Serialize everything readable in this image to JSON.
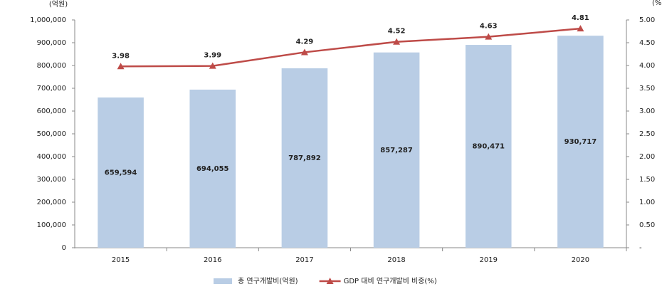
{
  "chart_data": {
    "type": "combo",
    "y_label": "(억원)",
    "y2_label": "(%)",
    "categories": [
      "2015",
      "2016",
      "2017",
      "2018",
      "2019",
      "2020"
    ],
    "series": [
      {
        "name": "총 연구개발비(억원)",
        "type": "bar",
        "color": "#b9cde5",
        "values": [
          659594,
          694055,
          787892,
          857287,
          890471,
          930717
        ],
        "value_labels": [
          "659,594",
          "694,055",
          "787,892",
          "857,287",
          "890,471",
          "930,717"
        ]
      },
      {
        "name": "GDP 대비 연구개발비 비중(%)",
        "type": "line",
        "axis": "y2",
        "color": "#be4b48",
        "values": [
          3.98,
          3.99,
          4.29,
          4.52,
          4.63,
          4.81
        ]
      }
    ],
    "ylim": [
      0,
      1000000
    ],
    "yticks": [
      {
        "value": 0,
        "label": "0"
      },
      {
        "value": 100000,
        "label": "100,000"
      },
      {
        "value": 200000,
        "label": "200,000"
      },
      {
        "value": 300000,
        "label": "300,000"
      },
      {
        "value": 400000,
        "label": "400,000"
      },
      {
        "value": 500000,
        "label": "500,000"
      },
      {
        "value": 600000,
        "label": "600,000"
      },
      {
        "value": 700000,
        "label": "700,000"
      },
      {
        "value": 800000,
        "label": "800,000"
      },
      {
        "value": 900000,
        "label": "900,000"
      },
      {
        "value": 1000000,
        "label": "1,000,000"
      }
    ],
    "y2lim": [
      0,
      5
    ],
    "y2ticks": [
      {
        "value": 0,
        "label": "-"
      },
      {
        "value": 0.5,
        "label": "0.50"
      },
      {
        "value": 1,
        "label": "1.00"
      },
      {
        "value": 1.5,
        "label": "1.50"
      },
      {
        "value": 2,
        "label": "2.00"
      },
      {
        "value": 2.5,
        "label": "2.50"
      },
      {
        "value": 3,
        "label": "3.00"
      },
      {
        "value": 3.5,
        "label": "3.50"
      },
      {
        "value": 4,
        "label": "4.00"
      },
      {
        "value": 4.5,
        "label": "4.50"
      },
      {
        "value": 5,
        "label": "5.00"
      }
    ],
    "grid": false,
    "legend": "bottom"
  }
}
